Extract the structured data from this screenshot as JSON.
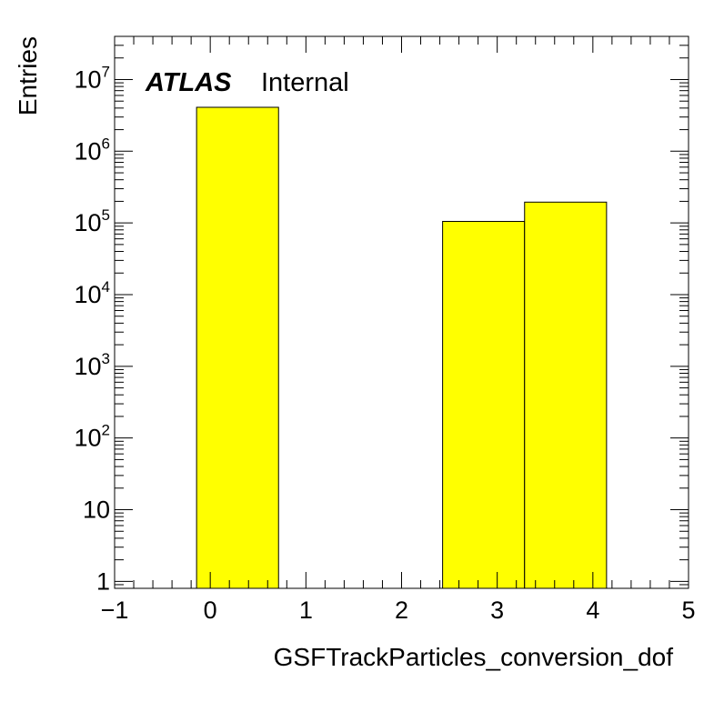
{
  "chart_data": {
    "type": "bar",
    "xlabel": "GSFTrackParticles_conversion_dof",
    "ylabel": "Entries",
    "xlim": [
      -1,
      5
    ],
    "ylim": [
      0.8,
      40000000
    ],
    "yscale": "log",
    "x_ticks": [
      "−1",
      "0",
      "1",
      "2",
      "3",
      "4",
      "5"
    ],
    "y_ticks": [
      {
        "value": 1,
        "base": "1",
        "exp": ""
      },
      {
        "value": 10,
        "base": "10",
        "exp": ""
      },
      {
        "value": 100,
        "base": "10",
        "exp": "2"
      },
      {
        "value": 1000,
        "base": "10",
        "exp": "3"
      },
      {
        "value": 10000,
        "base": "10",
        "exp": "4"
      },
      {
        "value": 100000,
        "base": "10",
        "exp": "5"
      },
      {
        "value": 1000000,
        "base": "10",
        "exp": "6"
      },
      {
        "value": 10000000,
        "base": "10",
        "exp": "7"
      }
    ],
    "bin_width": 0.857,
    "bins": [
      {
        "x": -0.143,
        "value": 4100000
      },
      {
        "x": 2.429,
        "value": 105000
      },
      {
        "x": 3.286,
        "value": 195000
      }
    ],
    "fill_color": "#ffff00",
    "line_color": "#000000",
    "grid": false
  },
  "label": {
    "atlas": "ATLAS",
    "status": "Internal"
  }
}
